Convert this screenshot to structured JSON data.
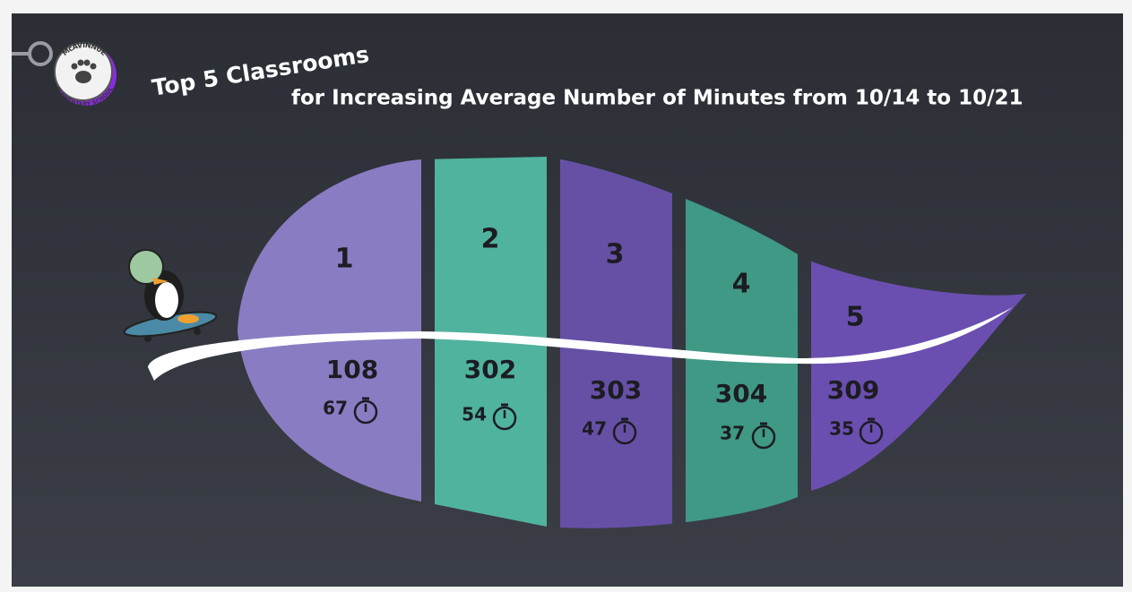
{
  "header": {
    "title": "Top 5 Classrooms",
    "subtitle": "for Increasing Average Number of Minutes from 10/14 to 10/21"
  },
  "logo": {
    "top_text": "McAVINNUE",
    "bottom_text": "ELEMENTARY SCHOOL"
  },
  "entries": [
    {
      "rank": 1,
      "room": 108,
      "minutes": 67
    },
    {
      "rank": 2,
      "room": 302,
      "minutes": 54
    },
    {
      "rank": 3,
      "room": 303,
      "minutes": 47
    },
    {
      "rank": 4,
      "room": 304,
      "minutes": 37
    },
    {
      "rank": 5,
      "room": 309,
      "minutes": 35
    }
  ]
}
